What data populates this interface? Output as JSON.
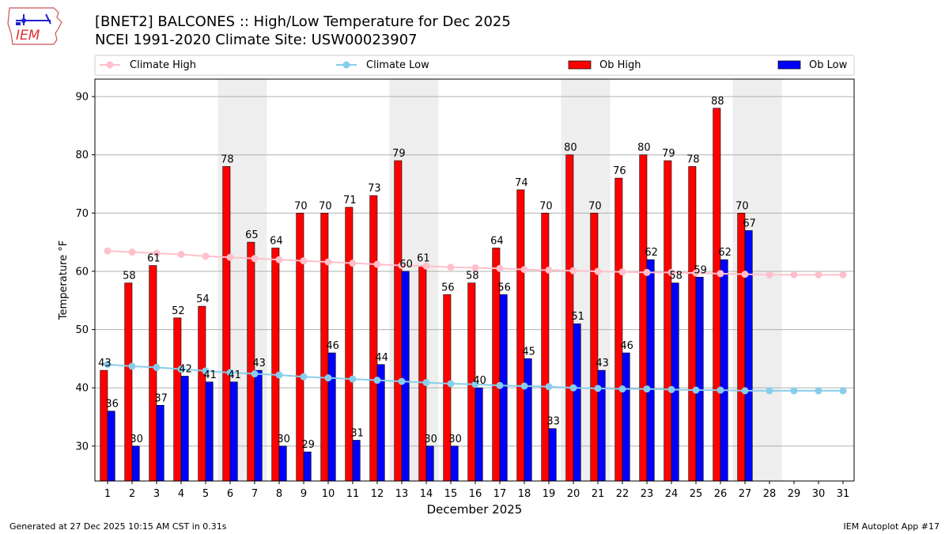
{
  "logo": {
    "text": "IEM",
    "icon": "iowa-state-outline-weather-station"
  },
  "footer": {
    "left": "Generated at 27 Dec 2025 10:15 AM CST in 0.31s",
    "right": "IEM Autoplot App #17"
  },
  "chart_data": {
    "type": "bar",
    "title": "[BNET2] BALCONES :: High/Low Temperature for Dec 2025",
    "subtitle": "NCEI 1991-2020 Climate Site: USW00023907",
    "xlabel": "December 2025",
    "ylabel": "Temperature °F",
    "ylim": [
      24,
      93
    ],
    "yticks": [
      30,
      40,
      50,
      60,
      70,
      80,
      90
    ],
    "grid": "horizontal",
    "legend_placement": "top",
    "categories": [
      "1",
      "2",
      "3",
      "4",
      "5",
      "6",
      "7",
      "8",
      "9",
      "10",
      "11",
      "12",
      "13",
      "14",
      "15",
      "16",
      "17",
      "18",
      "19",
      "20",
      "21",
      "22",
      "23",
      "24",
      "25",
      "26",
      "27",
      "28",
      "29",
      "30",
      "31"
    ],
    "weekend_shading_days": [
      [
        6,
        7
      ],
      [
        13,
        14
      ],
      [
        20,
        21
      ],
      [
        27,
        28
      ]
    ],
    "series": [
      {
        "name": "Ob High",
        "kind": "bar",
        "color": "#ff0000",
        "values": [
          43,
          58,
          61,
          52,
          54,
          78,
          65,
          64,
          70,
          70,
          71,
          73,
          79,
          61,
          56,
          58,
          64,
          74,
          70,
          80,
          70,
          76,
          80,
          79,
          78,
          88,
          70,
          null,
          null,
          null,
          null
        ]
      },
      {
        "name": "Ob Low",
        "kind": "bar",
        "color": "#0000ff",
        "values": [
          36,
          30,
          37,
          42,
          41,
          41,
          43,
          30,
          29,
          46,
          31,
          44,
          60,
          30,
          30,
          40,
          56,
          45,
          33,
          51,
          43,
          46,
          62,
          58,
          59,
          62,
          67,
          null,
          null,
          null,
          null
        ]
      },
      {
        "name": "Climate High",
        "kind": "line",
        "color": "#ffc0cb",
        "values": [
          63.5,
          63.3,
          63.1,
          62.9,
          62.6,
          62.4,
          62.2,
          62.0,
          61.8,
          61.6,
          61.4,
          61.2,
          61.0,
          60.9,
          60.7,
          60.6,
          60.5,
          60.3,
          60.2,
          60.1,
          60.0,
          59.9,
          59.8,
          59.8,
          59.7,
          59.6,
          59.5,
          59.4,
          59.4,
          59.4,
          59.4
        ]
      },
      {
        "name": "Climate Low",
        "kind": "line",
        "color": "#87ceeb",
        "values": [
          44.0,
          43.7,
          43.5,
          43.2,
          42.9,
          42.6,
          42.4,
          42.2,
          41.9,
          41.7,
          41.5,
          41.3,
          41.1,
          40.9,
          40.7,
          40.6,
          40.4,
          40.3,
          40.2,
          40.0,
          39.9,
          39.8,
          39.8,
          39.7,
          39.6,
          39.6,
          39.5,
          39.5,
          39.5,
          39.5,
          39.5
        ]
      }
    ]
  }
}
